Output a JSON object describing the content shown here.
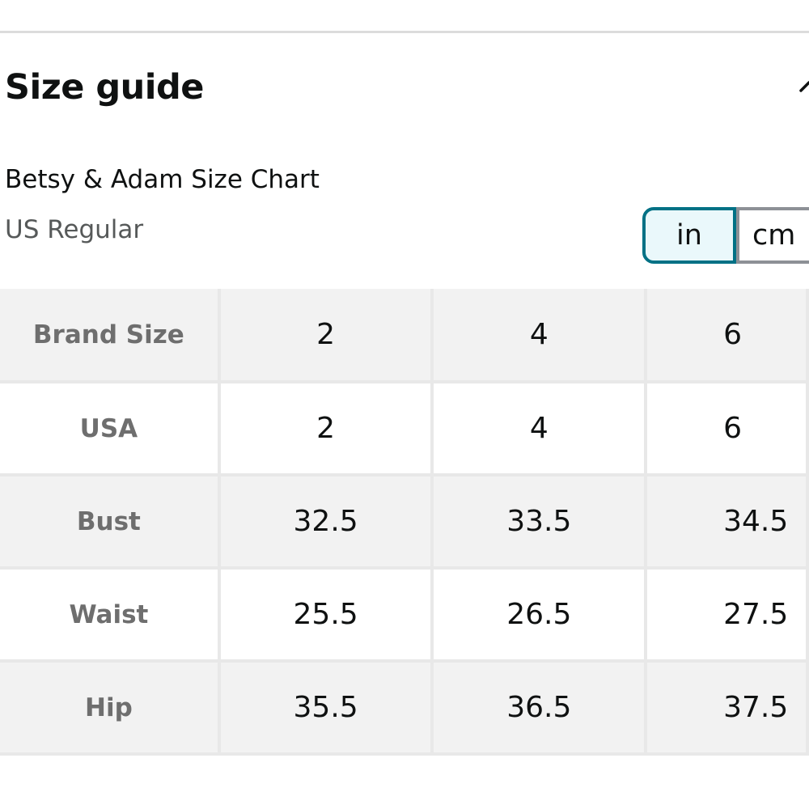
{
  "header": {
    "title": "Size guide",
    "collapse_icon": "chevron-up-icon"
  },
  "chart": {
    "title": "Betsy & Adam Size Chart",
    "region": "US Regular"
  },
  "units": {
    "options": [
      "in",
      "cm"
    ],
    "selected": "in"
  },
  "colors": {
    "accent": "#007185",
    "selected_bg": "#eaf8fb",
    "row_shade": "#f2f2f2",
    "label_text": "#6e6e6e"
  },
  "table": {
    "rows": [
      {
        "label": "Brand Size",
        "values": [
          "2",
          "4",
          "6"
        ]
      },
      {
        "label": "USA",
        "values": [
          "2",
          "4",
          "6"
        ]
      },
      {
        "label": "Bust",
        "values": [
          "32.5",
          "33.5",
          "34.5"
        ]
      },
      {
        "label": "Waist",
        "values": [
          "25.5",
          "26.5",
          "27.5"
        ]
      },
      {
        "label": "Hip",
        "values": [
          "35.5",
          "36.5",
          "37.5"
        ]
      }
    ]
  }
}
